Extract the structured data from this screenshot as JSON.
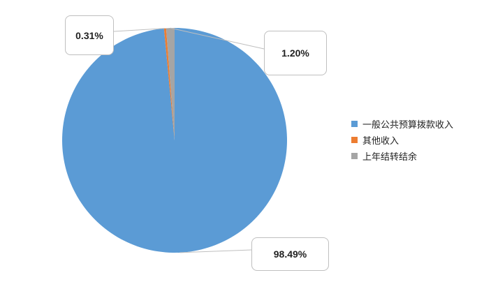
{
  "chart_data": {
    "type": "pie",
    "start_angle": "top, clockwise",
    "legend_position": "right",
    "slices": [
      {
        "name": "一般公共预算拨款收入",
        "value": 98.49,
        "label": "98.49%",
        "color": "#5b9bd5"
      },
      {
        "name": "其他收入",
        "value": 0.31,
        "label": "0.31%",
        "color": "#ed7d31"
      },
      {
        "name": "上年结转结余",
        "value": 1.2,
        "label": "1.20%",
        "color": "#a5a5a5"
      }
    ]
  }
}
